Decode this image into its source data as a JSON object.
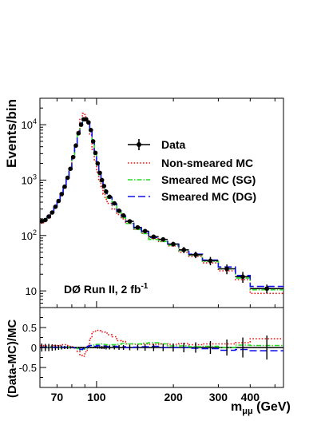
{
  "chart_data": [
    {
      "type": "line",
      "panel": "main",
      "ylabel": "Events/bin",
      "xlabel": "",
      "x_scale": "log",
      "y_scale": "log",
      "xlim": [
        60,
        540
      ],
      "ylim": [
        5,
        30000
      ],
      "y_ticks": [
        {
          "value": 10,
          "base": "10",
          "exp": ""
        },
        {
          "value": 100,
          "base": "10",
          "exp": "2"
        },
        {
          "value": 1000,
          "base": "10",
          "exp": "3"
        },
        {
          "value": 10000,
          "base": "10",
          "exp": "4"
        }
      ],
      "annotation": {
        "main": "DØ Run II, 2 fb",
        "sup": "-1"
      },
      "legend_position": "center-right",
      "legend": [
        {
          "label": "Data",
          "style": "points",
          "color": "#000000"
        },
        {
          "label": "Non-smeared MC",
          "style": "dotted",
          "color": "#ee1111"
        },
        {
          "label": "Smeared MC (SG)",
          "style": "dashdot",
          "color": "#22dd22"
        },
        {
          "label": "Smeared MC (DG)",
          "style": "dashed",
          "color": "#1111ee"
        }
      ],
      "bin_edges": [
        60,
        62,
        64,
        66,
        68,
        70,
        72,
        74,
        76,
        78,
        80,
        82,
        84,
        86,
        88,
        90,
        92,
        94,
        96,
        98,
        100,
        102,
        104,
        106,
        108,
        110,
        115,
        120,
        125,
        130,
        140,
        150,
        160,
        175,
        190,
        210,
        230,
        260,
        300,
        350,
        400,
        540
      ],
      "series": [
        {
          "name": "Data",
          "type": "points",
          "values": [
            180,
            190,
            220,
            260,
            330,
            420,
            560,
            760,
            1100,
            1600,
            2600,
            4200,
            7000,
            10000,
            12500,
            12500,
            11000,
            8000,
            5000,
            3100,
            2000,
            1350,
            1000,
            780,
            620,
            500,
            380,
            280,
            230,
            180,
            140,
            120,
            95,
            85,
            70,
            55,
            45,
            35,
            25,
            18,
            11
          ],
          "errors": [
            15,
            15,
            16,
            18,
            20,
            22,
            25,
            30,
            35,
            42,
            55,
            70,
            90,
            110,
            120,
            120,
            110,
            95,
            75,
            60,
            48,
            40,
            34,
            30,
            27,
            24,
            18,
            16,
            14,
            12,
            10,
            9,
            8,
            8,
            7,
            7,
            6,
            6,
            5,
            4,
            2
          ]
        },
        {
          "name": "Non-smeared MC",
          "type": "step",
          "values": [
            170,
            180,
            210,
            250,
            315,
            400,
            520,
            710,
            1050,
            1550,
            2550,
            4300,
            7800,
            12500,
            16000,
            14000,
            10500,
            6500,
            3600,
            2200,
            1400,
            950,
            720,
            560,
            450,
            380,
            300,
            240,
            200,
            165,
            130,
            110,
            88,
            78,
            65,
            50,
            42,
            32,
            23,
            16,
            9
          ]
        },
        {
          "name": "Smeared MC (SG)",
          "type": "step",
          "values": [
            178,
            188,
            218,
            258,
            328,
            418,
            556,
            752,
            1090,
            1590,
            2600,
            4250,
            7200,
            10600,
            13000,
            12700,
            10800,
            7600,
            4700,
            2900,
            1850,
            1250,
            920,
            720,
            580,
            470,
            355,
            260,
            210,
            165,
            128,
            108,
            85,
            78,
            67,
            53,
            44,
            34,
            25,
            17,
            10.5
          ]
        },
        {
          "name": "Smeared MC (DG)",
          "type": "step",
          "values": [
            178,
            188,
            218,
            258,
            328,
            418,
            556,
            752,
            1090,
            1590,
            2600,
            4250,
            7200,
            10500,
            12900,
            12600,
            10700,
            7600,
            4800,
            3000,
            1900,
            1300,
            960,
            750,
            600,
            490,
            370,
            275,
            225,
            180,
            138,
            118,
            92,
            85,
            70,
            55,
            46,
            36,
            27,
            19,
            12
          ]
        }
      ]
    },
    {
      "type": "line",
      "panel": "ratio",
      "ylabel": "(Data-MC)/MC",
      "xlabel": "m",
      "xlabel_sub": "μμ",
      "xlabel_unit": " (GeV)",
      "x_scale": "log",
      "xlim": [
        60,
        540
      ],
      "ylim": [
        -1,
        1
      ],
      "x_ticks": [
        {
          "value": 70,
          "label": "70"
        },
        {
          "value": 100,
          "label": "100"
        },
        {
          "value": 200,
          "label": "200"
        },
        {
          "value": 300,
          "label": "300"
        },
        {
          "value": 400,
          "label": "400"
        }
      ],
      "y_ticks": [
        {
          "value": -0.5,
          "label": "-0.5"
        },
        {
          "value": 0,
          "label": "0"
        },
        {
          "value": 0.5,
          "label": "0.5"
        }
      ],
      "bin_edges": [
        60,
        62,
        64,
        66,
        68,
        70,
        72,
        74,
        76,
        78,
        80,
        82,
        84,
        86,
        88,
        90,
        92,
        94,
        96,
        98,
        100,
        102,
        104,
        106,
        108,
        110,
        115,
        120,
        125,
        130,
        140,
        150,
        160,
        175,
        190,
        210,
        230,
        260,
        300,
        350,
        400,
        540
      ],
      "series": [
        {
          "name": "Non-smeared MC",
          "type": "step",
          "values": [
            0.05,
            0.04,
            0.05,
            0.04,
            0.05,
            0.05,
            0.07,
            0.07,
            0.05,
            0.03,
            0.02,
            -0.02,
            -0.1,
            -0.2,
            -0.22,
            -0.11,
            0.05,
            0.23,
            0.39,
            0.41,
            0.43,
            0.42,
            0.39,
            0.39,
            0.38,
            0.32,
            0.27,
            0.17,
            0.15,
            0.09,
            0.08,
            0.09,
            0.08,
            0.09,
            0.08,
            0.1,
            0.07,
            0.09,
            0.09,
            0.12,
            0.22
          ]
        },
        {
          "name": "Smeared MC (SG)",
          "type": "step",
          "values": [
            0.01,
            0.01,
            0.01,
            0.01,
            0.01,
            0.0,
            0.01,
            0.01,
            0.01,
            0.01,
            0.0,
            -0.01,
            -0.03,
            -0.06,
            -0.04,
            -0.02,
            0.02,
            0.05,
            0.06,
            0.07,
            0.08,
            0.08,
            0.09,
            0.08,
            0.07,
            0.06,
            0.07,
            0.08,
            0.1,
            0.09,
            0.09,
            0.11,
            0.12,
            0.09,
            0.04,
            0.04,
            0.02,
            0.03,
            0.0,
            0.06,
            0.05
          ]
        },
        {
          "name": "Smeared MC (DG)",
          "type": "step",
          "values": [
            0.01,
            0.01,
            0.01,
            0.01,
            0.01,
            0.0,
            0.01,
            0.01,
            0.01,
            0.01,
            0.0,
            -0.01,
            -0.03,
            -0.05,
            -0.03,
            -0.01,
            0.03,
            0.05,
            0.04,
            0.03,
            0.05,
            0.04,
            0.04,
            0.04,
            0.03,
            0.02,
            0.03,
            0.02,
            0.02,
            0.0,
            0.01,
            0.02,
            0.03,
            0.0,
            0.0,
            0.0,
            -0.02,
            -0.03,
            -0.07,
            -0.05,
            -0.08
          ]
        },
        {
          "name": "Data",
          "type": "points",
          "values": [
            0,
            0,
            0,
            0,
            0,
            0,
            0,
            0,
            0,
            0,
            0,
            0,
            0,
            0,
            0,
            0,
            0,
            0,
            0,
            0,
            0,
            0,
            0,
            0,
            0,
            0,
            0,
            0,
            0,
            0,
            0,
            0,
            0,
            0,
            0,
            0,
            0,
            0,
            0,
            0,
            0
          ],
          "errors": [
            0.1,
            0.09,
            0.09,
            0.08,
            0.07,
            0.06,
            0.05,
            0.04,
            0.04,
            0.03,
            0.02,
            0.02,
            0.02,
            0.02,
            0.02,
            0.02,
            0.02,
            0.02,
            0.02,
            0.02,
            0.03,
            0.03,
            0.04,
            0.04,
            0.05,
            0.05,
            0.05,
            0.06,
            0.06,
            0.07,
            0.07,
            0.08,
            0.09,
            0.09,
            0.1,
            0.12,
            0.13,
            0.16,
            0.2,
            0.25,
            0.3
          ]
        }
      ]
    }
  ]
}
